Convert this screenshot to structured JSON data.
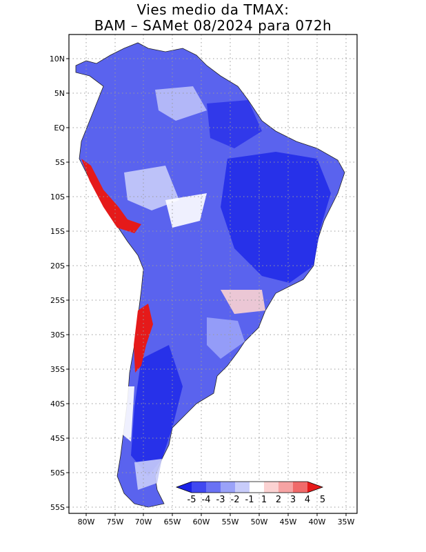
{
  "title": {
    "line1": "Vies medio da TMAX:",
    "line2": "BAM – SAMet 08/2024  para 072h"
  },
  "axes": {
    "lat_labels": [
      "10N",
      "5N",
      "EQ",
      "5S",
      "10S",
      "15S",
      "20S",
      "25S",
      "30S",
      "35S",
      "40S",
      "45S",
      "50S",
      "55S"
    ],
    "lon_labels": [
      "80W",
      "75W",
      "70W",
      "65W",
      "60W",
      "55W",
      "50W",
      "45W",
      "40W",
      "35W"
    ]
  },
  "colorbar": {
    "labels": [
      "-5",
      "-4",
      "-3",
      "-2",
      "-1",
      "1",
      "2",
      "3",
      "4",
      "5"
    ],
    "colors": [
      "#1a22e6",
      "#4048f0",
      "#6a72f4",
      "#9aa2f8",
      "#c8ccfa",
      "#ffffff",
      "#fbd2d2",
      "#f6a3a3",
      "#f06a6a",
      "#e51a1a"
    ]
  }
}
